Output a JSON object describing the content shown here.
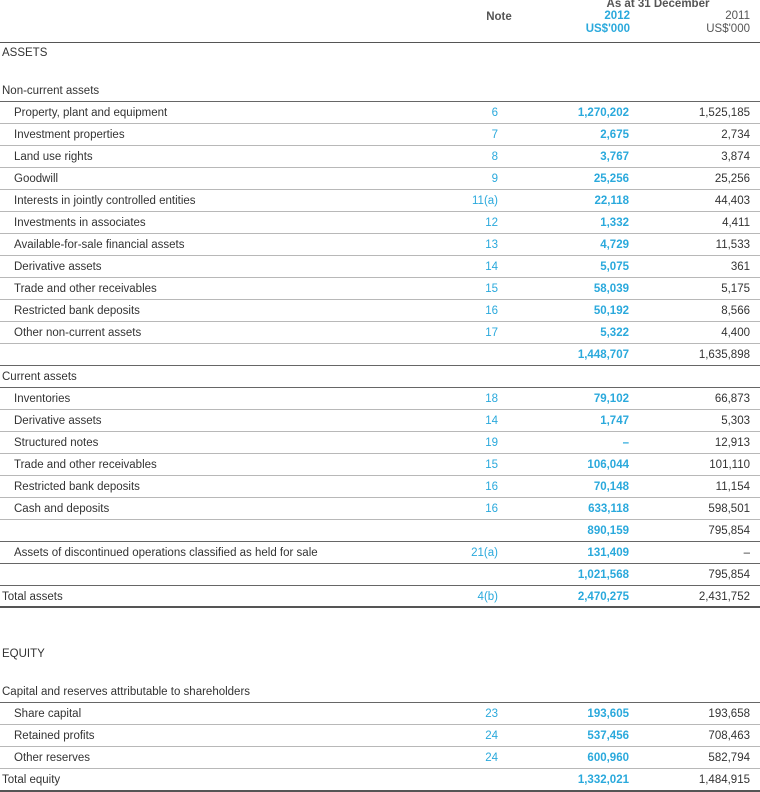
{
  "header": {
    "note": "Note",
    "as_at": "As at 31 December",
    "col_2012_year": "2012",
    "col_2012_unit": "US$'000",
    "col_2011_year": "2011",
    "col_2011_unit": "US$'000"
  },
  "assets": {
    "heading": "ASSETS",
    "noncurrent_heading": "Non-current assets",
    "noncurrent": [
      {
        "label": "Property, plant and equipment",
        "note": "6",
        "v2012": "1,270,202",
        "v2011": "1,525,185"
      },
      {
        "label": "Investment properties",
        "note": "7",
        "v2012": "2,675",
        "v2011": "2,734"
      },
      {
        "label": "Land use rights",
        "note": "8",
        "v2012": "3,767",
        "v2011": "3,874"
      },
      {
        "label": "Goodwill",
        "note": "9",
        "v2012": "25,256",
        "v2011": "25,256"
      },
      {
        "label": "Interests in jointly controlled entities",
        "note": "11(a)",
        "v2012": "22,118",
        "v2011": "44,403"
      },
      {
        "label": "Investments in associates",
        "note": "12",
        "v2012": "1,332",
        "v2011": "4,411"
      },
      {
        "label": "Available-for-sale financial assets",
        "note": "13",
        "v2012": "4,729",
        "v2011": "11,533"
      },
      {
        "label": "Derivative assets",
        "note": "14",
        "v2012": "5,075",
        "v2011": "361"
      },
      {
        "label": "Trade and other receivables",
        "note": "15",
        "v2012": "58,039",
        "v2011": "5,175"
      },
      {
        "label": "Restricted bank deposits",
        "note": "16",
        "v2012": "50,192",
        "v2011": "8,566"
      },
      {
        "label": "Other non-current assets",
        "note": "17",
        "v2012": "5,322",
        "v2011": "4,400"
      }
    ],
    "noncurrent_subtotal": {
      "v2012": "1,448,707",
      "v2011": "1,635,898"
    },
    "current_heading": "Current assets",
    "current": [
      {
        "label": "Inventories",
        "note": "18",
        "v2012": "79,102",
        "v2011": "66,873"
      },
      {
        "label": "Derivative assets",
        "note": "14",
        "v2012": "1,747",
        "v2011": "5,303"
      },
      {
        "label": "Structured notes",
        "note": "19",
        "v2012": "–",
        "v2011": "12,913"
      },
      {
        "label": "Trade and other receivables",
        "note": "15",
        "v2012": "106,044",
        "v2011": "101,110"
      },
      {
        "label": "Restricted bank deposits",
        "note": "16",
        "v2012": "70,148",
        "v2011": "11,154"
      },
      {
        "label": "Cash and deposits",
        "note": "16",
        "v2012": "633,118",
        "v2011": "598,501"
      }
    ],
    "current_subtotal": {
      "v2012": "890,159",
      "v2011": "795,854"
    },
    "held_for_sale": {
      "label": "Assets of discontinued operations classified as held for sale",
      "note": "21(a)",
      "v2012": "131,409",
      "v2011": "–"
    },
    "current_total": {
      "v2012": "1,021,568",
      "v2011": "795,854"
    },
    "total": {
      "label": "Total assets",
      "note": "4(b)",
      "v2012": "2,470,275",
      "v2011": "2,431,752"
    }
  },
  "equity": {
    "heading": "EQUITY",
    "sub_heading": "Capital and reserves attributable to shareholders",
    "items": [
      {
        "label": "Share capital",
        "note": "23",
        "v2012": "193,605",
        "v2011": "193,658"
      },
      {
        "label": "Retained profits",
        "note": "24",
        "v2012": "537,456",
        "v2011": "708,463"
      },
      {
        "label": "Other reserves",
        "note": "24",
        "v2012": "600,960",
        "v2011": "582,794"
      }
    ],
    "total": {
      "label": "Total equity",
      "v2012": "1,332,021",
      "v2011": "1,484,915"
    }
  }
}
